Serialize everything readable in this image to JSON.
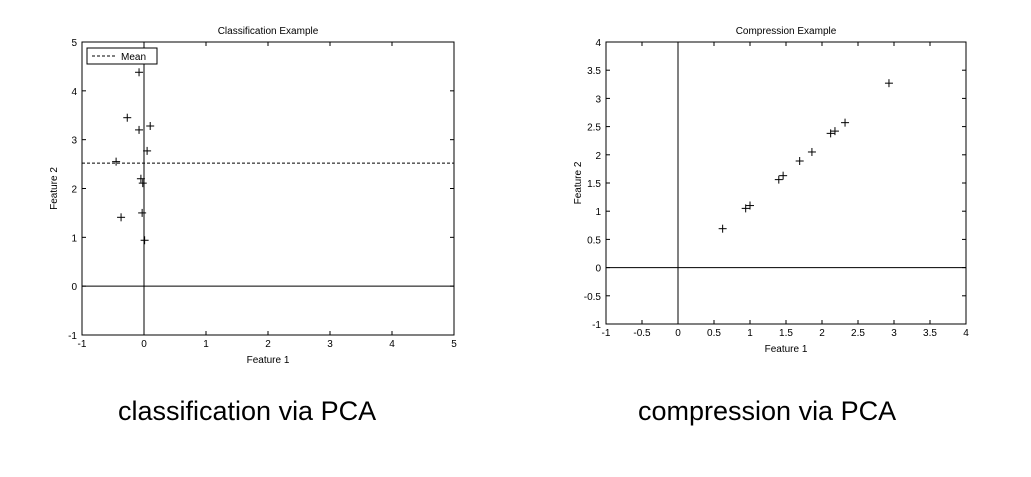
{
  "chart_data": [
    {
      "type": "scatter",
      "title": "Classification Example",
      "xlabel": "Feature 1",
      "ylabel": "Feature 2",
      "xlim": [
        -1,
        5
      ],
      "ylim": [
        -1,
        5
      ],
      "xticks": [
        -1,
        0,
        1,
        2,
        3,
        4,
        5
      ],
      "yticks": [
        -1,
        0,
        1,
        2,
        3,
        4,
        5
      ],
      "xtick_labels": [
        "-1",
        "0",
        "1",
        "2",
        "3",
        "4",
        "5"
      ],
      "ytick_labels": [
        "-1",
        "0",
        "1",
        "2",
        "3",
        "4",
        "5"
      ],
      "marker": "+",
      "points": [
        {
          "x": -0.08,
          "y": 4.38
        },
        {
          "x": -0.27,
          "y": 3.45
        },
        {
          "x": -0.08,
          "y": 3.2
        },
        {
          "x": 0.1,
          "y": 3.28
        },
        {
          "x": 0.05,
          "y": 2.77
        },
        {
          "x": -0.45,
          "y": 2.55
        },
        {
          "x": -0.05,
          "y": 2.2
        },
        {
          "x": -0.02,
          "y": 2.11
        },
        {
          "x": -0.37,
          "y": 1.41
        },
        {
          "x": -0.03,
          "y": 1.5
        },
        {
          "x": 0.01,
          "y": 0.94
        }
      ],
      "reference_lines": {
        "x": 0,
        "y": 0
      },
      "mean_line": {
        "y": 2.52,
        "style": "dashed"
      },
      "legend": {
        "label": "Mean",
        "position": "top-left"
      }
    },
    {
      "type": "scatter",
      "title": "Compression Example",
      "xlabel": "Feature 1",
      "ylabel": "Feature 2",
      "xlim": [
        -1,
        4
      ],
      "ylim": [
        -1,
        4
      ],
      "xticks": [
        -1,
        -0.5,
        0,
        0.5,
        1,
        1.5,
        2,
        2.5,
        3,
        3.5,
        4
      ],
      "yticks": [
        -1,
        -0.5,
        0,
        0.5,
        1,
        1.5,
        2,
        2.5,
        3,
        3.5,
        4
      ],
      "xtick_labels": [
        "-1",
        "-0.5",
        "0",
        "0.5",
        "1",
        "1.5",
        "2",
        "2.5",
        "3",
        "3.5",
        "4"
      ],
      "ytick_labels": [
        "-1",
        "-0.5",
        "0",
        "0.5",
        "1",
        "1.5",
        "2",
        "2.5",
        "3",
        "3.5",
        "4"
      ],
      "marker": "+",
      "points": [
        {
          "x": 0.62,
          "y": 0.69
        },
        {
          "x": 0.94,
          "y": 1.05
        },
        {
          "x": 1.0,
          "y": 1.1
        },
        {
          "x": 1.4,
          "y": 1.56
        },
        {
          "x": 1.46,
          "y": 1.63
        },
        {
          "x": 1.69,
          "y": 1.89
        },
        {
          "x": 1.86,
          "y": 2.05
        },
        {
          "x": 2.12,
          "y": 2.38
        },
        {
          "x": 2.18,
          "y": 2.42
        },
        {
          "x": 2.32,
          "y": 2.57
        },
        {
          "x": 2.93,
          "y": 3.27
        }
      ],
      "reference_lines": {
        "x": 0,
        "y": 0
      }
    }
  ],
  "captions": {
    "left": "classification via PCA",
    "right": "compression via PCA"
  }
}
